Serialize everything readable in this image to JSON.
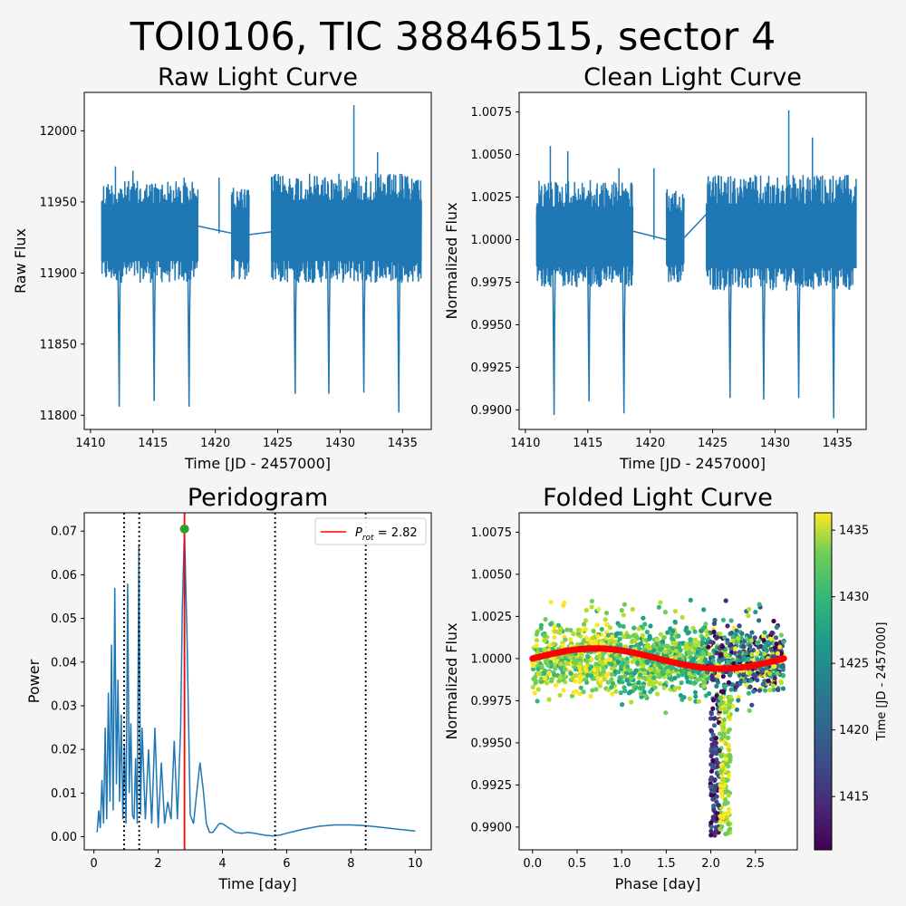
{
  "figure": {
    "title": "TOI0106, TIC 38846515, sector 4"
  },
  "colors": {
    "series": "#1f77b4",
    "prot_line": "#ff0000",
    "harmonic_lines": "#000000",
    "peak_marker": "#2ca02c",
    "model": "#ff0000",
    "colormap": "viridis"
  },
  "chart_data": [
    {
      "id": "raw",
      "type": "line",
      "title": "Raw Light Curve",
      "xlabel": "Time [JD - 2457000]",
      "ylabel": "Raw Flux",
      "xlim": [
        1409.5,
        1437.3
      ],
      "ylim": [
        11790,
        12027
      ],
      "xticks": [
        1410,
        1415,
        1420,
        1425,
        1430,
        1435
      ],
      "yticks": [
        11800,
        11850,
        11900,
        11950,
        12000
      ],
      "baseline": 11928,
      "noise_band": [
        11895,
        11960
      ],
      "segments": [
        {
          "x": [
            1410.9,
            1418.6
          ],
          "envelope": [
            11893,
            11965
          ]
        },
        {
          "x": [
            1421.3,
            1422.7
          ],
          "envelope": [
            11895,
            11960
          ]
        },
        {
          "x": [
            1424.5,
            1436.5
          ],
          "envelope": [
            11893,
            11970
          ]
        }
      ],
      "gaps": [
        {
          "x": [
            1418.6,
            1421.3
          ],
          "y": [
            11933,
            11928
          ]
        },
        {
          "x": [
            1422.7,
            1424.5
          ],
          "y": [
            11927,
            11929
          ]
        }
      ],
      "dips": [
        {
          "x": 1412.3,
          "y": 11806
        },
        {
          "x": 1415.1,
          "y": 11810
        },
        {
          "x": 1417.9,
          "y": 11806
        },
        {
          "x": 1426.4,
          "y": 11815
        },
        {
          "x": 1429.1,
          "y": 11815
        },
        {
          "x": 1431.9,
          "y": 11816
        },
        {
          "x": 1434.7,
          "y": 11802
        }
      ],
      "spikes": [
        {
          "x": 1412.0,
          "y": 11975
        },
        {
          "x": 1413.4,
          "y": 11972
        },
        {
          "x": 1417.5,
          "y": 11967
        },
        {
          "x": 1420.3,
          "y": 11967
        },
        {
          "x": 1431.1,
          "y": 12018
        },
        {
          "x": 1433.0,
          "y": 11985
        }
      ]
    },
    {
      "id": "clean",
      "type": "line",
      "title": "Clean Light Curve",
      "xlabel": "Time [JD - 2457000]",
      "ylabel": "Normalized Flux",
      "xlim": [
        1409.5,
        1437.3
      ],
      "ylim": [
        0.98885,
        1.00865
      ],
      "xticks": [
        1410,
        1415,
        1420,
        1425,
        1430,
        1435
      ],
      "xtick_labels": [
        "1410",
        "1415",
        "1420",
        "1425",
        "1430",
        "1435"
      ],
      "yticks": [
        0.99,
        0.9925,
        0.995,
        0.9975,
        1.0,
        1.0025,
        1.005,
        1.0075
      ],
      "ytick_labels": [
        "0.9900",
        "0.9925",
        "0.9950",
        "0.9975",
        "1.0000",
        "1.0025",
        "1.0050",
        "1.0075"
      ],
      "baseline": 1.0,
      "segments": [
        {
          "x": [
            1410.9,
            1418.6
          ],
          "envelope": [
            0.9972,
            1.0035
          ]
        },
        {
          "x": [
            1421.3,
            1422.7
          ],
          "envelope": [
            0.9975,
            1.003
          ]
        },
        {
          "x": [
            1424.5,
            1436.5
          ],
          "envelope": [
            0.997,
            1.0038
          ]
        }
      ],
      "gaps": [
        {
          "x": [
            1418.6,
            1421.3
          ],
          "y": [
            1.0005,
            1.0
          ]
        },
        {
          "x": [
            1422.7,
            1424.5
          ],
          "y": [
            1.0001,
            1.0015
          ]
        }
      ],
      "dips": [
        {
          "x": 1412.3,
          "y": 0.9897
        },
        {
          "x": 1415.1,
          "y": 0.9905
        },
        {
          "x": 1417.9,
          "y": 0.9898
        },
        {
          "x": 1426.4,
          "y": 0.9907
        },
        {
          "x": 1429.1,
          "y": 0.9906
        },
        {
          "x": 1431.9,
          "y": 0.9907
        },
        {
          "x": 1434.7,
          "y": 0.9895
        }
      ],
      "spikes": [
        {
          "x": 1412.0,
          "y": 1.0055
        },
        {
          "x": 1413.4,
          "y": 1.0052
        },
        {
          "x": 1417.5,
          "y": 1.0042
        },
        {
          "x": 1420.3,
          "y": 1.0042
        },
        {
          "x": 1431.1,
          "y": 1.0076
        },
        {
          "x": 1433.0,
          "y": 1.006
        }
      ]
    },
    {
      "id": "periodogram",
      "type": "line",
      "title": "Peridogram",
      "xlabel": "Time [day]",
      "ylabel": "Power",
      "xlim": [
        -0.3,
        10.5
      ],
      "ylim": [
        -0.003,
        0.0742
      ],
      "xticks": [
        0,
        2,
        4,
        6,
        8,
        10
      ],
      "yticks": [
        0.0,
        0.01,
        0.02,
        0.03,
        0.04,
        0.05,
        0.06,
        0.07
      ],
      "ytick_labels": [
        "0.00",
        "0.01",
        "0.02",
        "0.03",
        "0.04",
        "0.05",
        "0.06",
        "0.07"
      ],
      "curve": {
        "x": [
          0.1,
          0.15,
          0.2,
          0.25,
          0.3,
          0.35,
          0.4,
          0.45,
          0.5,
          0.55,
          0.6,
          0.65,
          0.7,
          0.75,
          0.8,
          0.85,
          0.9,
          0.95,
          1.0,
          1.05,
          1.1,
          1.15,
          1.2,
          1.25,
          1.3,
          1.35,
          1.4,
          1.45,
          1.5,
          1.6,
          1.7,
          1.8,
          1.9,
          2.0,
          2.1,
          2.2,
          2.3,
          2.4,
          2.5,
          2.6,
          2.7,
          2.75,
          2.82,
          2.9,
          3.0,
          3.1,
          3.2,
          3.3,
          3.4,
          3.5,
          3.6,
          3.7,
          3.8,
          3.9,
          4.0,
          4.2,
          4.4,
          4.6,
          4.8,
          5.0,
          5.2,
          5.4,
          5.6,
          5.8,
          6.0,
          6.5,
          7.0,
          7.5,
          8.0,
          8.5,
          9.0,
          9.5,
          10.0
        ],
        "y": [
          0.001,
          0.006,
          0.002,
          0.013,
          0.003,
          0.025,
          0.004,
          0.033,
          0.008,
          0.044,
          0.006,
          0.057,
          0.012,
          0.036,
          0.008,
          0.028,
          0.004,
          0.021,
          0.003,
          0.058,
          0.01,
          0.026,
          0.005,
          0.004,
          0.018,
          0.003,
          0.067,
          0.005,
          0.025,
          0.004,
          0.02,
          0.003,
          0.025,
          0.002,
          0.017,
          0.003,
          0.008,
          0.004,
          0.022,
          0.004,
          0.025,
          0.052,
          0.0705,
          0.045,
          0.005,
          0.003,
          0.01,
          0.017,
          0.011,
          0.003,
          0.001,
          0.001,
          0.002,
          0.003,
          0.003,
          0.002,
          0.001,
          0.0008,
          0.001,
          0.0008,
          0.0005,
          0.0003,
          0.0002,
          0.0004,
          0.0008,
          0.0017,
          0.0024,
          0.0027,
          0.0027,
          0.0025,
          0.0021,
          0.0017,
          0.0013
        ]
      },
      "prot": 2.82,
      "prot_power": 0.0705,
      "harmonics": [
        0.94,
        1.41,
        5.64,
        8.46
      ],
      "legend": {
        "label": "$P_{rot} = 2.82$",
        "text": "P",
        "subscript": "rot",
        "value_text": " = 2.82",
        "position": "upper right"
      }
    },
    {
      "id": "folded",
      "type": "scatter",
      "title": "Folded Light Curve",
      "xlabel": "Phase [day]",
      "ylabel": "Normalized Flux",
      "xlim": [
        -0.15,
        2.97
      ],
      "ylim": [
        0.98865,
        1.00865
      ],
      "xticks": [
        0.0,
        0.5,
        1.0,
        1.5,
        2.0,
        2.5
      ],
      "xtick_labels": [
        "0.0",
        "0.5",
        "1.0",
        "1.5",
        "2.0",
        "2.5"
      ],
      "yticks": [
        0.99,
        0.9925,
        0.995,
        0.9975,
        1.0,
        1.0025,
        1.005,
        1.0075
      ],
      "ytick_labels": [
        "0.9900",
        "0.9925",
        "0.9950",
        "0.9975",
        "1.0000",
        "1.0025",
        "1.0050",
        "1.0075"
      ],
      "phase_range": [
        0.0,
        2.82
      ],
      "flux_band": [
        0.9978,
        1.0022
      ],
      "transit": {
        "phase": [
          1.92,
          2.3
        ],
        "min_flux": 0.9895
      },
      "model": {
        "amplitude": 0.0006,
        "offset": 0.99975,
        "period": 2.82
      },
      "colorbar": {
        "label": "Time [JD - 2457000]",
        "range": [
          1411.0,
          1436.3
        ],
        "ticks": [
          1415,
          1420,
          1425,
          1430,
          1435
        ]
      }
    }
  ]
}
